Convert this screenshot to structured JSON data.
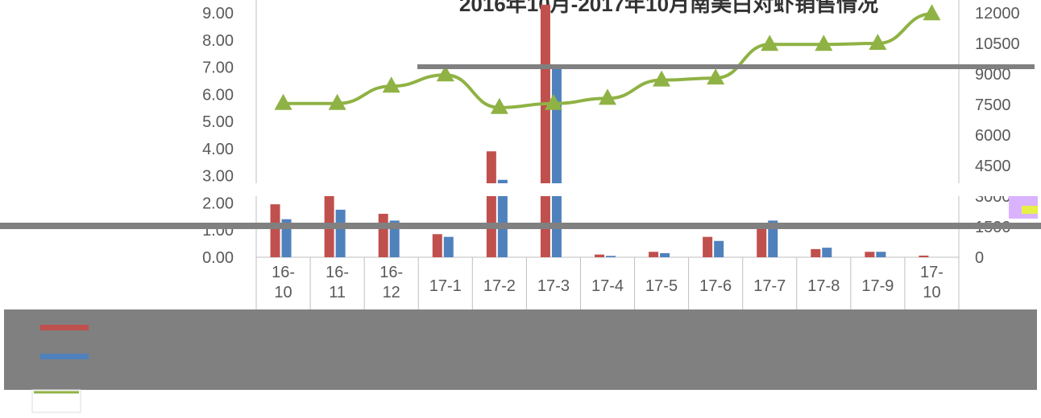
{
  "chart_data": {
    "type": "bar",
    "title": "2016年10月-2017年10月南美白对虾销售情况",
    "categories": [
      "16-10",
      "16-11",
      "16-12",
      "17-1",
      "17-2",
      "17-3",
      "17-4",
      "17-5",
      "17-6",
      "17-7",
      "17-8",
      "17-9",
      "17-10"
    ],
    "category_lines": [
      [
        "16-",
        "10"
      ],
      [
        "16-",
        "11"
      ],
      [
        "16-",
        "12"
      ],
      [
        "17-1"
      ],
      [
        "17-2"
      ],
      [
        "17-3"
      ],
      [
        "17-4"
      ],
      [
        "17-5"
      ],
      [
        "17-6"
      ],
      [
        "17-7"
      ],
      [
        "17-8"
      ],
      [
        "17-9"
      ],
      [
        "17-",
        "10"
      ]
    ],
    "left_axis": {
      "ylim": [
        0,
        9
      ],
      "ticks": [
        "0.00",
        "1.00",
        "2.00",
        "3.00",
        "4.00",
        "5.00",
        "6.00",
        "7.00",
        "8.00",
        "9.00"
      ]
    },
    "right_axis": {
      "ylim": [
        0,
        12000
      ],
      "ticks": [
        "0",
        "1500",
        "3000",
        "4500",
        "6000",
        "7500",
        "9000",
        "10500",
        "12000"
      ]
    },
    "series": [
      {
        "kind": "bar",
        "axis": "left",
        "color": "#c0504d",
        "values": [
          1.95,
          2.3,
          1.6,
          0.85,
          3.9,
          9.3,
          0.1,
          0.2,
          0.75,
          1.25,
          0.3,
          0.2,
          0.06
        ]
      },
      {
        "kind": "bar",
        "axis": "left",
        "color": "#4f81bd",
        "values": [
          1.4,
          1.75,
          1.35,
          0.75,
          2.85,
          7.0,
          0.05,
          0.15,
          0.6,
          1.35,
          0.35,
          0.2,
          0.0
        ]
      },
      {
        "kind": "line",
        "axis": "right",
        "color": "#8fb244",
        "values": [
          7550,
          7550,
          8400,
          8950,
          7350,
          7550,
          7800,
          8700,
          8800,
          10450,
          10450,
          10500,
          11950
        ]
      }
    ],
    "grid": false,
    "legend": "bottom (table)"
  }
}
